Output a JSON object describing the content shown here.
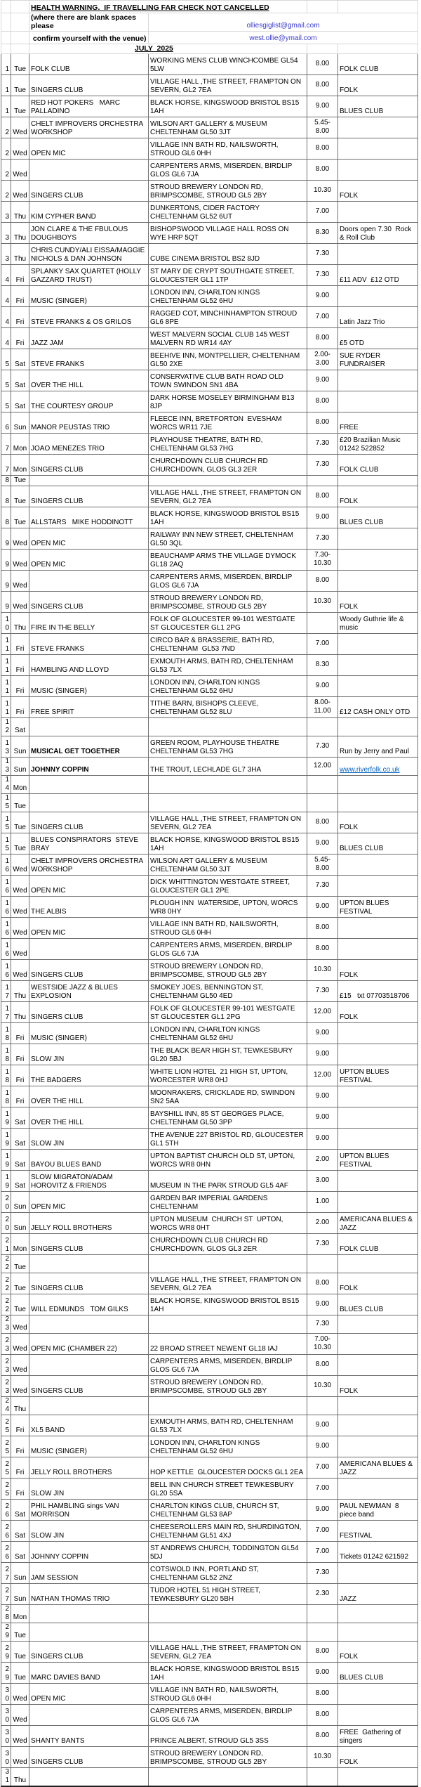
{
  "header": {
    "warning": "HEALTH WARNING.  IF TRAVELLING FAR CHECK NOT CANCELLED",
    "note_line1": "(where there are blank spaces please",
    "note_line2": " confirm yourself with the venue)",
    "email1": "olliesgiglist@gmail.com",
    "email2": "west.ollie@ymail.com",
    "month_title": "JULY  2025"
  },
  "colors": {
    "email_blue": "#3a3ad1",
    "hyperlink_blue": "#0563c1",
    "grid_line": "#6e6e6e",
    "header_grid_line": "#d8d8d8"
  },
  "columns": [
    "day",
    "dow",
    "act",
    "venue",
    "time",
    "note"
  ],
  "rows": [
    {
      "day": "1",
      "dow": "Tue",
      "act": "FOLK CLUB",
      "venue": "WORKING MENS CLUB WINCHCOMBE GL54 5LW",
      "time": "8.00",
      "note": "FOLK CLUB",
      "lines": 2
    },
    {
      "day": "1",
      "dow": "Tue",
      "act": "SINGERS CLUB",
      "venue": "VILLAGE HALL ,THE STREET, FRAMPTON ON SEVERN, GL2 7EA",
      "time": "8.00",
      "note": "FOLK",
      "lines": 2
    },
    {
      "day": "1",
      "dow": "Tue",
      "act": "RED HOT POKERS   MARC PALLADINO",
      "venue": "BLACK HORSE, KINGSWOOD BRISTOL BS15 1AH",
      "time": "9.00",
      "note": "BLUES CLUB",
      "lines": 2
    },
    {
      "day": "2",
      "dow": "Wed",
      "act": "CHELT IMPROVERS ORCHESTRA WORKSHOP",
      "venue": "WILSON ART GALLERY & MUSEUM CHELTENHAM GL50 3JT",
      "time": "5.45- 8.00",
      "note": "",
      "lines": 2
    },
    {
      "day": "2",
      "dow": "Wed",
      "act": "OPEN MIC",
      "venue": "VILLAGE INN BATH RD, NAILSWORTH, STROUD GL6 0HH",
      "time": "8.00",
      "note": "",
      "lines": 2
    },
    {
      "day": "2",
      "dow": "Wed",
      "act": "",
      "venue": "CARPENTERS ARMS, MISERDEN, BIRDLIP GLOS GL6 7JA",
      "time": "8.00",
      "note": "",
      "lines": 2
    },
    {
      "day": "2",
      "dow": "Wed",
      "act": "SINGERS CLUB",
      "venue": "STROUD BREWERY LONDON RD, BRIMPSCOMBE, STROUD GL5 2BY",
      "time": "10.30",
      "note": "FOLK",
      "lines": 2
    },
    {
      "day": "3",
      "dow": "Thu",
      "act": "KIM CYPHER BAND",
      "venue": "DUNKERTONS, CIDER FACTORY CHELTENHAM GL52 6UT",
      "time": "7.00",
      "note": "",
      "lines": 2
    },
    {
      "day": "3",
      "dow": "Thu",
      "act": "JON CLARE & THE FBULOUS DOUGHBOYS",
      "venue": "BISHOPSWOOD VILLAGE HALL ROSS ON WYE HRP 5QT",
      "time": "8.30",
      "note": "Doors open 7.30  Rock & Roll Club",
      "lines": 2
    },
    {
      "day": "3",
      "dow": "Thu",
      "act": "CHRIS CUNDY/ALI EISSA/MAGGIE NICHOLS & DAN JOHNSON",
      "venue": "CUBE CINEMA BRISTOL BS2 8JD",
      "time": "7.30",
      "note": "",
      "lines": 2
    },
    {
      "day": "4",
      "dow": "Fri",
      "act": "SPLANKY SAX QUARTET (HOLLY GAZZARD TRUST)",
      "venue": "ST MARY DE CRYPT SOUTHGATE STREET, GLOUCESTER GL1 1TP",
      "time": "7.30",
      "note": "£11 ADV  £12 OTD",
      "lines": 2
    },
    {
      "day": "4",
      "dow": "Fri",
      "act": "MUSIC (SINGER)",
      "venue": "LONDON INN, CHARLTON KINGS CHELTENHAM GL52 6HU",
      "time": "9.00",
      "note": "",
      "lines": 2
    },
    {
      "day": "4",
      "dow": "Fri",
      "act": "STEVE FRANKS & OS GRILOS",
      "venue": "RAGGED COT, MINCHINHAMPTON STROUD GL6 8PE",
      "time": "7.00",
      "note": "Latin Jazz Trio",
      "lines": 2
    },
    {
      "day": "4",
      "dow": "Fri",
      "act": "JAZZ JAM",
      "venue": "WEST MALVERN SOCIAL CLUB 145 WEST MALVERN RD WR14 4AY",
      "time": "8.00",
      "note": "£5 OTD",
      "lines": 2
    },
    {
      "day": "5",
      "dow": "Sat",
      "act": "STEVE FRANKS",
      "venue": "BEEHIVE INN, MONTPELLIER, CHELTENHAM GL50 2XE",
      "time": "2.00- 3.00",
      "note": "SUE RYDER FUNDRAISER",
      "lines": 2
    },
    {
      "day": "5",
      "dow": "Sat",
      "act": "OVER THE HILL",
      "venue": "CONSERVATIVE CLUB BATH ROAD OLD TOWN SWINDON SN1 4BA",
      "time": "9.00",
      "note": "",
      "lines": 2
    },
    {
      "day": "5",
      "dow": "Sat",
      "act": "THE COURTESY GROUP",
      "venue": "DARK HORSE MOSELEY BIRMINGHAM B13 8JP",
      "time": "8.00",
      "note": "",
      "lines": 2
    },
    {
      "day": "6",
      "dow": "Sun",
      "act": "MANOR PEUSTAS TRIO",
      "venue": "FLEECE INN, BRETFORTON  EVESHAM WORCS WR11 7JE",
      "time": "8.00",
      "note": "FREE",
      "lines": 2
    },
    {
      "day": "7",
      "dow": "Mon",
      "act": "JOAO MENEZES TRIO",
      "venue": "PLAYHOUSE THEATRE, BATH RD, CHELTENHAM GL53 7HG",
      "time": "7.30",
      "note": "£20 Brazilian Music 01242 522852",
      "lines": 2
    },
    {
      "day": "7",
      "dow": "Mon",
      "act": "SINGERS CLUB",
      "venue": "CHURCHDOWN CLUB CHURCH RD CHURCHDOWN, GLOS GL3 2ER",
      "time": "7.30",
      "note": "FOLK CLUB",
      "lines": 2
    },
    {
      "day": "8",
      "dow": "Tue",
      "act": "",
      "venue": "",
      "time": "",
      "note": "",
      "lines": 1
    },
    {
      "day": "8",
      "dow": "Tue",
      "act": "SINGERS CLUB",
      "venue": "VILLAGE HALL ,THE STREET, FRAMPTON ON SEVERN, GL2 7EA",
      "time": "8.00",
      "note": "FOLK",
      "lines": 2
    },
    {
      "day": "8",
      "dow": "Tue",
      "act": "ALLSTARS   MIKE HODDINOTT",
      "venue": "BLACK HORSE, KINGSWOOD BRISTOL BS15 1AH",
      "time": "9.00",
      "note": "BLUES CLUB",
      "lines": 2
    },
    {
      "day": "9",
      "dow": "Wed",
      "act": "OPEN MIC",
      "venue": "RAILWAY INN NEW STREET, CHELTENHAM GL50 3QL",
      "time": "7.30",
      "note": "",
      "lines": 2
    },
    {
      "day": "9",
      "dow": "Wed",
      "act": "OPEN MIC",
      "venue": "BEAUCHAMP ARMS THE VILLAGE DYMOCK GL18 2AQ",
      "time": "7.30- 10.30",
      "note": "",
      "lines": 2
    },
    {
      "day": "9",
      "dow": "Wed",
      "act": "",
      "venue": "CARPENTERS ARMS, MISERDEN, BIRDLIP GLOS GL6 7JA",
      "time": "8.00",
      "note": "",
      "lines": 2
    },
    {
      "day": "9",
      "dow": "Wed",
      "act": "SINGERS CLUB",
      "venue": "STROUD BREWERY LONDON RD, BRIMPSCOMBE, STROUD GL5 2BY",
      "time": "10.30",
      "note": "FOLK",
      "lines": 2
    },
    {
      "day": "10",
      "dow": "Thu",
      "act": "FIRE IN THE BELLY",
      "venue": "FOLK OF GLOUCESTER 99-101 WESTGATE ST GLOUCESTER GL1 2PG",
      "time": "",
      "note": "Woody Guthrie life & music",
      "lines": 2
    },
    {
      "day": "11",
      "dow": "Fri",
      "act": "STEVE FRANKS",
      "venue": "CIRCO BAR & BRASSERIE, BATH RD, CHELTENHAM  GL53 7ND",
      "time": "7.00",
      "note": "",
      "lines": 2
    },
    {
      "day": "11",
      "dow": "Fri",
      "act": "HAMBLING AND LLOYD",
      "venue": "EXMOUTH ARMS, BATH RD, CHELTENHAM GL53 7LX",
      "time": "8.30",
      "note": "",
      "lines": 2
    },
    {
      "day": "11",
      "dow": "Fri",
      "act": "MUSIC (SINGER)",
      "venue": "LONDON INN, CHARLTON KINGS CHELTENHAM GL52 6HU",
      "time": "9.00",
      "note": "",
      "lines": 2
    },
    {
      "day": "11",
      "dow": "Fri",
      "act": "FREE SPIRIT",
      "venue": "TITHE BARN, BISHOPS CLEEVE, CHELTENHAM GL52 8LU",
      "time": "8.00- 11.00",
      "note": "£12 CASH ONLY OTD",
      "lines": 2
    },
    {
      "day": "12",
      "dow": "Sat",
      "act": "",
      "venue": "",
      "time": "",
      "note": "",
      "lines": 1
    },
    {
      "day": "13",
      "dow": "Sun",
      "act": "MUSICAL GET TOGETHER",
      "act_bold": true,
      "venue": "GREEN ROOM, PLAYHOUSE THEATRE CHELTENHAM GL53 7HG",
      "time": "7.30",
      "note": "Run by Jerry and Paul",
      "lines": 2
    },
    {
      "day": "13",
      "dow": "Sun",
      "act": "JOHNNY COPPIN",
      "act_bold": true,
      "venue": "THE TROUT, LECHLADE GL7 3HA",
      "time": "12.00",
      "note": "www.riverfolk.co.uk",
      "note_link": true,
      "lines": 1
    },
    {
      "day": "14",
      "dow": "Mon",
      "act": "",
      "venue": "",
      "time": "",
      "note": "",
      "lines": 1
    },
    {
      "day": "15",
      "dow": "Tue",
      "act": "",
      "venue": "",
      "time": "",
      "note": "",
      "lines": 1
    },
    {
      "day": "15",
      "dow": "Tue",
      "act": "SINGERS CLUB",
      "venue": "VILLAGE HALL ,THE STREET, FRAMPTON ON SEVERN, GL2 7EA",
      "time": "8.00",
      "note": "FOLK",
      "lines": 2
    },
    {
      "day": "15",
      "dow": "Tue",
      "act": "BLUES CONSPIRATORS  STEVE BRAY",
      "venue": "BLACK HORSE, KINGSWOOD BRISTOL BS15 1AH",
      "time": "9.00",
      "note": "BLUES CLUB",
      "lines": 2
    },
    {
      "day": "16",
      "dow": "Wed",
      "act": "CHELT IMPROVERS ORCHESTRA WORKSHOP",
      "venue": "WILSON ART GALLERY & MUSEUM CHELTENHAM GL50 3JT",
      "time": "5.45- 8.00",
      "note": "",
      "lines": 2
    },
    {
      "day": "16",
      "dow": "Wed",
      "act": "OPEN MIC",
      "venue": "DICK WHITTINGTON WESTGATE STREET, GLOUCESTER GL1 2PE",
      "time": "7.30",
      "note": "",
      "lines": 2
    },
    {
      "day": "16",
      "dow": "Wed",
      "act": "THE ALBIS",
      "venue": "PLOUGH INN  WATERSIDE, UPTON, WORCS WR8 0HY",
      "time": "9.00",
      "note": "UPTON BLUES FESTIVAL",
      "lines": 2
    },
    {
      "day": "16",
      "dow": "Wed",
      "act": "OPEN MIC",
      "venue": "VILLAGE INN BATH RD, NAILSWORTH, STROUD GL6 0HH",
      "time": "8.00",
      "note": "",
      "lines": 2
    },
    {
      "day": "16",
      "dow": "Wed",
      "act": "",
      "venue": "CARPENTERS ARMS, MISERDEN, BIRDLIP GLOS GL6 7JA",
      "time": "8.00",
      "note": "",
      "lines": 2
    },
    {
      "day": "16",
      "dow": "Wed",
      "act": "SINGERS CLUB",
      "venue": "STROUD BREWERY LONDON RD, BRIMPSCOMBE, STROUD GL5 2BY",
      "time": "10.30",
      "note": "FOLK",
      "lines": 2
    },
    {
      "day": "17",
      "dow": "Thu",
      "act": "WESTSIDE JAZZ & BLUES EXPLOSION",
      "venue": "SMOKEY JOES, BENNINGTON ST, CHELTENHAM GL50 4ED",
      "time": "7.30",
      "note": "£15   txt 07703518706",
      "lines": 2
    },
    {
      "day": "17",
      "dow": "Thu",
      "act": "SINGERS CLUB",
      "venue": "FOLK OF GLOUCESTER 99-101 WESTGATE ST GLOUCESTER GL1 2PG",
      "time": "12.00",
      "note": "FOLK",
      "lines": 2
    },
    {
      "day": "18",
      "dow": "Fri",
      "act": "MUSIC (SINGER)",
      "venue": "LONDON INN, CHARLTON KINGS CHELTENHAM GL52 6HU",
      "time": "9.00",
      "note": "",
      "lines": 2
    },
    {
      "day": "18",
      "dow": "Fri",
      "act": "SLOW JIN",
      "venue": "THE BLACK BEAR HIGH ST, TEWKESBURY GL20 5BJ",
      "time": "9.00",
      "note": "",
      "lines": 2
    },
    {
      "day": "18",
      "dow": "Fri",
      "act": "THE BADGERS",
      "venue": "WHITE LION HOTEL  21 HIGH ST, UPTON, WORCESTER WR8 0HJ",
      "time": "12.00",
      "note": "UPTON BLUES FESTIVAL",
      "lines": 2
    },
    {
      "day": "18",
      "dow": "Fri",
      "act": "OVER THE HILL",
      "venue": "MOONRAKERS, CRICKLADE RD, SWINDON SN2 5AA",
      "time": "9.00",
      "note": "",
      "lines": 2
    },
    {
      "day": "19",
      "dow": "Sat",
      "act": "OVER THE HILL",
      "venue": "BAYSHILL INN, 85 ST GEORGES PLACE, CHELTENHAM GL50 3PP",
      "time": "9.00",
      "note": "",
      "lines": 2
    },
    {
      "day": "19",
      "dow": "Sat",
      "act": "SLOW JIN",
      "venue": "THE AVENUE 227 BRISTOL RD, GLOUCESTER GL1 5TH",
      "time": "9.00",
      "note": "",
      "lines": 2
    },
    {
      "day": "19",
      "dow": "Sat",
      "act": "BAYOU BLUES BAND",
      "venue": "UPTON BAPTIST CHURCH OLD ST, UPTON, WORCS WR8 0HN",
      "time": "2.00",
      "note": "UPTON BLUES FESTIVAL",
      "lines": 2
    },
    {
      "day": "19",
      "dow": "Sat",
      "act": "SLOW MIGRATON/ADAM HOROVITZ & FRIENDS",
      "venue": "MUSEUM IN THE PARK STROUD GL5 4AF",
      "time": "3.00",
      "note": "",
      "lines": 2
    },
    {
      "day": "20",
      "dow": "Sun",
      "act": "OPEN MIC",
      "venue": "GARDEN BAR IMPERIAL GARDENS CHELTENHAM",
      "time": "1.00",
      "note": "",
      "lines": 2
    },
    {
      "day": "20",
      "dow": "Sun",
      "act": "JELLY ROLL BROTHERS",
      "venue": "UPTON MUSEUM  CHURCH ST  UPTON, WORCS WR8 0HT",
      "time": "2.00",
      "note": "AMERICANA BLUES & JAZZ",
      "lines": 2
    },
    {
      "day": "21",
      "dow": "Mon",
      "act": "SINGERS CLUB",
      "venue": "CHURCHDOWN CLUB CHURCH RD CHURCHDOWN, GLOS GL3 2ER",
      "time": "7.30",
      "note": "FOLK CLUB",
      "lines": 2
    },
    {
      "day": "22",
      "dow": "Tue",
      "act": "",
      "venue": "",
      "time": "",
      "note": "",
      "lines": 1
    },
    {
      "day": "22",
      "dow": "Tue",
      "act": "SINGERS CLUB",
      "venue": "VILLAGE HALL ,THE STREET, FRAMPTON ON SEVERN, GL2 7EA",
      "time": "8.00",
      "note": "FOLK",
      "lines": 2
    },
    {
      "day": "22",
      "dow": "Tue",
      "act": "WILL EDMUNDS   TOM GILKS",
      "venue": "BLACK HORSE, KINGSWOOD BRISTOL BS15 1AH",
      "time": "9.00",
      "note": "BLUES CLUB",
      "lines": 2
    },
    {
      "day": "23",
      "dow": "Wed",
      "act": "",
      "venue": "",
      "time": "7.30",
      "note": "",
      "lines": 1
    },
    {
      "day": "23",
      "dow": "Wed",
      "act": "OPEN MIC (CHAMBER 22)",
      "venue": "22 BROAD STREET NEWENT GL18 IAJ",
      "time": "7.00- 10.30",
      "note": "",
      "lines": 2
    },
    {
      "day": "23",
      "dow": "Wed",
      "act": "",
      "venue": "CARPENTERS ARMS, MISERDEN, BIRDLIP GLOS GL6 7JA",
      "time": "8.00",
      "note": "",
      "lines": 2
    },
    {
      "day": "23",
      "dow": "Wed",
      "act": "SINGERS CLUB",
      "venue": "STROUD BREWERY LONDON RD, BRIMPSCOMBE, STROUD GL5 2BY",
      "time": "10.30",
      "note": "FOLK",
      "lines": 2
    },
    {
      "day": "24",
      "dow": "Thu",
      "act": "",
      "venue": "",
      "time": "",
      "note": "",
      "lines": 1
    },
    {
      "day": "25",
      "dow": "Fri",
      "act": "XL5 BAND",
      "venue": "EXMOUTH ARMS, BATH RD, CHELTENHAM GL53 7LX",
      "time": "9.00",
      "note": "",
      "lines": 2
    },
    {
      "day": "25",
      "dow": "Fri",
      "act": "MUSIC (SINGER)",
      "venue": "LONDON INN, CHARLTON KINGS CHELTENHAM GL52 6HU",
      "time": "9.00",
      "note": "",
      "lines": 2
    },
    {
      "day": "25",
      "dow": "Fri",
      "act": "JELLY ROLL BROTHERS",
      "venue": "HOP KETTLE  GLOUCESTER DOCKS GL1 2EA",
      "time": "7.00",
      "note": "AMERICANA BLUES & JAZZ",
      "lines": 2
    },
    {
      "day": "25",
      "dow": "Fri",
      "act": "SLOW JIN",
      "venue": "BELL INN CHURCH STREET TEWKESBURY GL20 5SA",
      "time": "7.00",
      "note": "",
      "lines": 2
    },
    {
      "day": "26",
      "dow": "Sat",
      "act": "PHIL HAMBLING sings VAN MORRISON",
      "venue": "CHARLTON KINGS CLUB, CHURCH ST, CHELTENHAM GL53 8AP",
      "time": "9.00",
      "note": "PAUL NEWMAN  8 piece band",
      "lines": 2
    },
    {
      "day": "26",
      "dow": "Sat",
      "act": "SLOW JIN",
      "venue": "CHEESEROLLERS MAIN RD, SHURDINGTON, CHELTENHAM GL51 4XJ",
      "time": "7.00",
      "note": "FESTIVAL",
      "lines": 2
    },
    {
      "day": "26",
      "dow": "Sat",
      "act": "JOHNNY COPPIN",
      "venue": "ST ANDREWS CHURCH, TODDINGTON GL54 5DJ",
      "time": "7.00",
      "note": "Tickets 01242 621592",
      "lines": 2
    },
    {
      "day": "27",
      "dow": "Sun",
      "act": "JAM SESSION",
      "venue": "COTSWOLD INN, PORTLAND ST, CHELTENHAM GL52 2NZ",
      "time": "7.30",
      "note": "",
      "lines": 2
    },
    {
      "day": "27",
      "dow": "Sun",
      "act": "NATHAN THOMAS TRIO",
      "venue": "TUDOR HOTEL 51 HIGH STREET, TEWKESBURY GL20 5BH",
      "time": "2.30",
      "note": "JAZZ",
      "lines": 2
    },
    {
      "day": "28",
      "dow": "Mon",
      "act": "",
      "venue": "",
      "time": "",
      "note": "",
      "lines": 1
    },
    {
      "day": "29",
      "dow": "Tue",
      "act": "",
      "venue": "",
      "time": "",
      "note": "",
      "lines": 1
    },
    {
      "day": "29",
      "dow": "Tue",
      "act": "SINGERS CLUB",
      "venue": "VILLAGE HALL ,THE STREET, FRAMPTON ON SEVERN, GL2 7EA",
      "time": "8.00",
      "note": "FOLK",
      "lines": 2
    },
    {
      "day": "29",
      "dow": "Tue",
      "act": "MARC DAVIES BAND",
      "venue": "BLACK HORSE, KINGSWOOD BRISTOL BS15 1AH",
      "time": "9.00",
      "note": "BLUES CLUB",
      "lines": 2
    },
    {
      "day": "30",
      "dow": "Wed",
      "act": "OPEN MIC",
      "venue": "VILLAGE INN BATH RD, NAILSWORTH, STROUD GL6 0HH",
      "time": "8.00",
      "note": "",
      "lines": 2
    },
    {
      "day": "30",
      "dow": "Wed",
      "act": "",
      "venue": "CARPENTERS ARMS, MISERDEN, BIRDLIP GLOS GL6 7JA",
      "time": "8.00",
      "note": "",
      "lines": 2
    },
    {
      "day": "30",
      "dow": "Wed",
      "act": "SHANTY BANTS",
      "venue": "PRINCE ALBERT, STROUD GL5 3SS",
      "time": "8.00",
      "note": "FREE  Gathering of singers",
      "lines": 2
    },
    {
      "day": "30",
      "dow": "Wed",
      "act": "SINGERS CLUB",
      "venue": "STROUD BREWERY LONDON RD, BRIMPSCOMBE, STROUD GL5 2BY",
      "time": "10.30",
      "note": "FOLK",
      "lines": 2
    },
    {
      "day": "31",
      "dow": "Thu",
      "act": "",
      "venue": "",
      "time": "",
      "note": "",
      "lines": 1
    }
  ]
}
